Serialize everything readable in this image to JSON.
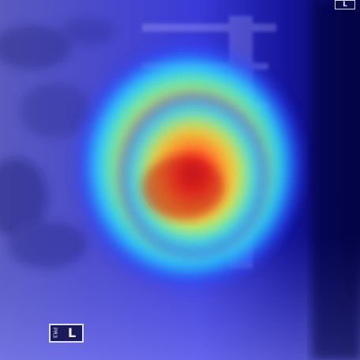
{
  "image": {
    "description_kind": "x-ray heatmap overlay",
    "colormap": [
      "#0a0a6a",
      "#2a3aff",
      "#28c8ff",
      "#60ffa0",
      "#f0e040",
      "#ff8a20",
      "#ff2a2a",
      "#c01818"
    ]
  },
  "markers": {
    "bottom_marker_rotated": "PR3",
    "bottom_marker_letter": "L",
    "top_marker_letter": "L"
  }
}
